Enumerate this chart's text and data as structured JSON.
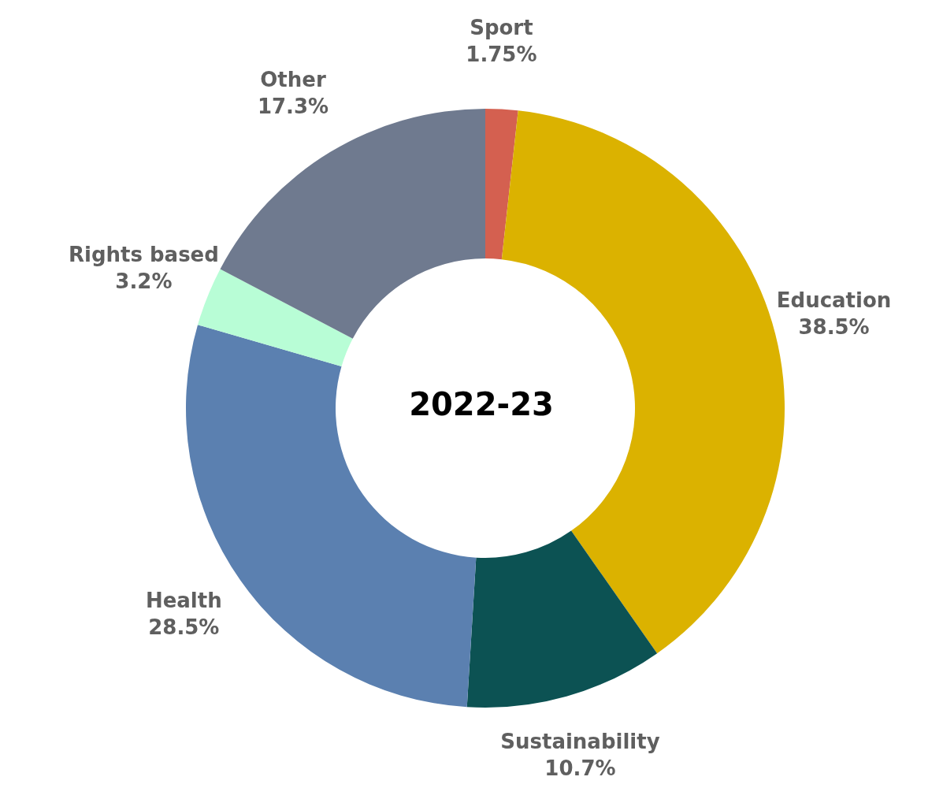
{
  "chart_data": {
    "type": "donut",
    "title": "2022-23",
    "categories": [
      "Sport",
      "Education",
      "Sustainability",
      "Health",
      "Rights based",
      "Other"
    ],
    "values": [
      1.75,
      38.5,
      10.7,
      28.5,
      3.2,
      17.3
    ],
    "value_labels": [
      "1.75%",
      "38.5%",
      "10.7%",
      "28.5%",
      "3.2%",
      "17.3%"
    ],
    "colors": [
      "#d46050",
      "#dbb200",
      "#0c5253",
      "#5b80b0",
      "#b8fdd6",
      "#6f7a8f"
    ],
    "legend": false
  }
}
